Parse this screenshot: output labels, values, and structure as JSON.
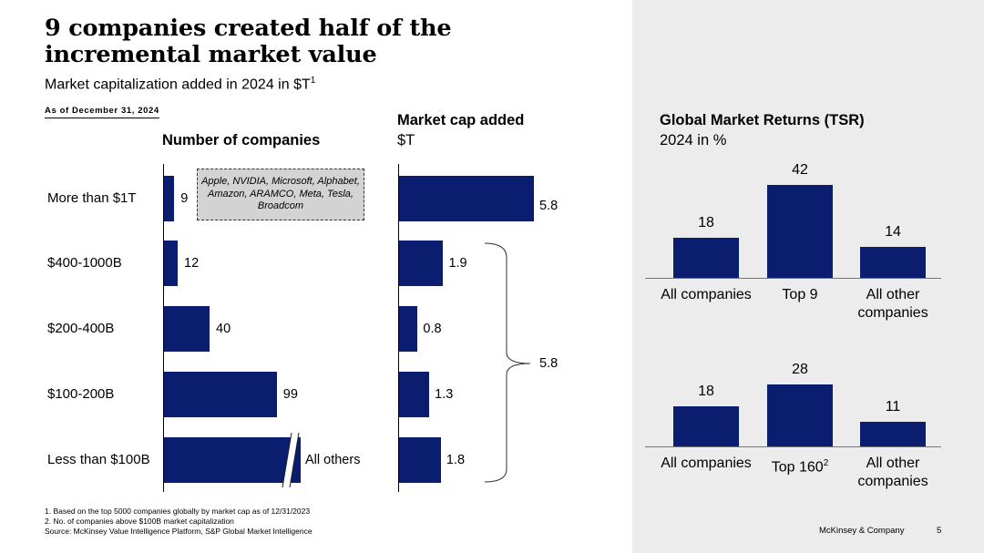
{
  "title": "9 companies created half of the incremental market value",
  "subtitle": "Market capitalization added in 2024 in $T",
  "subtitle_sup": "1",
  "as_of": "As of December 31, 2024",
  "chart_data": [
    {
      "type": "bar",
      "orientation": "horizontal",
      "title": "Number of companies",
      "categories": [
        "More than $1T",
        "$400-1000B",
        "$200-400B",
        "$100-200B",
        "Less than $100B"
      ],
      "values": [
        9,
        12,
        40,
        99,
        null
      ],
      "value_labels": [
        "9",
        "12",
        "40",
        "99",
        "All others"
      ],
      "annotation": "Apple, NVIDIA, Microsoft, Alphabet, Amazon, ARAMCO, Meta, Tesla, Broadcom",
      "axis_break_on": "Less than $100B"
    },
    {
      "type": "bar",
      "orientation": "horizontal",
      "title": "Market cap added",
      "unit": "$T",
      "categories": [
        "More than $1T",
        "$400-1000B",
        "$200-400B",
        "$100-200B",
        "Less than $100B"
      ],
      "values": [
        5.8,
        1.9,
        0.8,
        1.3,
        1.8
      ],
      "value_labels": [
        "5.8",
        "1.9",
        "0.8",
        "1.3",
        "1.8"
      ],
      "bracket_total_label": "5.8"
    },
    {
      "type": "bar",
      "title": "Global Market Returns (TSR)",
      "subtitle": "2024 in %",
      "categories": [
        "All companies",
        "Top 9",
        "All other companies"
      ],
      "values": [
        18,
        42,
        14
      ],
      "ylim": [
        0,
        42
      ]
    },
    {
      "type": "bar",
      "categories": [
        "All companies",
        "Top 160",
        "All other companies"
      ],
      "category_sup": [
        "",
        "2",
        ""
      ],
      "values": [
        18,
        28,
        11
      ],
      "ylim": [
        0,
        42
      ]
    }
  ],
  "footnotes": [
    "1. Based on the top 5000 companies globally by market cap as of 12/31/2023",
    "2. No. of companies above $100B market capitalization",
    "Source: McKinsey Value Intelligence Platform, S&P Global Market Intelligence"
  ],
  "footer": {
    "brand": "McKinsey & Company",
    "page": "5"
  },
  "colors": {
    "bar": "#0b1d6e",
    "panel": "#ececec",
    "note": "#d3d3d3"
  }
}
